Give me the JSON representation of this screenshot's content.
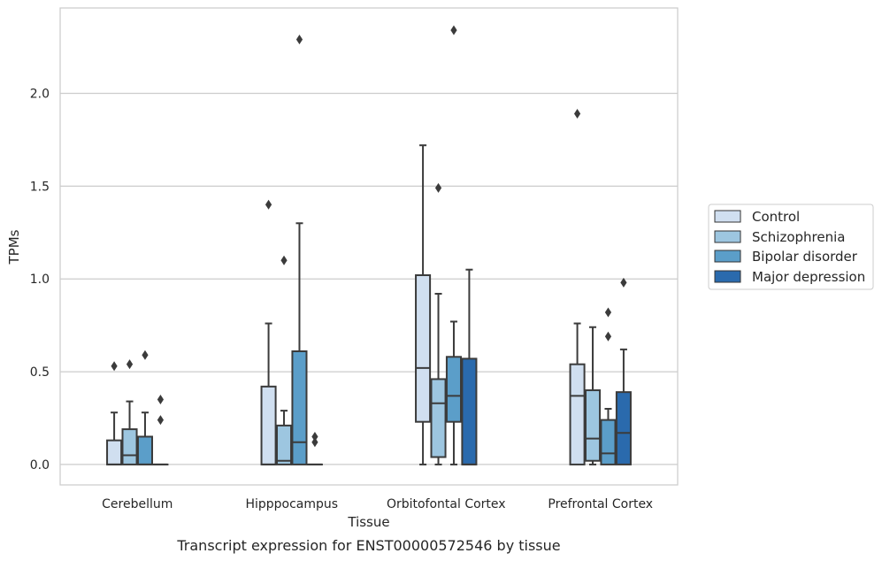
{
  "chart_data": {
    "type": "box",
    "xlabel": "Tissue",
    "ylabel": "TPMs",
    "caption": "Transcript expression for ENST00000572546 by tissue",
    "ylim": [
      -0.11,
      2.46
    ],
    "yticks": [
      "0.0",
      "0.5",
      "1.0",
      "1.5",
      "2.0"
    ],
    "ytick_values": [
      0.0,
      0.5,
      1.0,
      1.5,
      2.0
    ],
    "grid": "horizontal",
    "legend_position": "right",
    "categories": [
      "Cerebellum",
      "Hipppocampus",
      "Orbitofontal Cortex",
      "Prefrontal Cortex"
    ],
    "series": [
      {
        "name": "Control",
        "color": "#d0dff0"
      },
      {
        "name": "Schizophrenia",
        "color": "#9dc6e0"
      },
      {
        "name": "Bipolar disorder",
        "color": "#5b9ec9"
      },
      {
        "name": "Major depression",
        "color": "#2a6aad"
      }
    ],
    "boxes": [
      [
        {
          "min": 0.0,
          "q1": 0.0,
          "median": 0.0,
          "q3": 0.13,
          "max": 0.28,
          "outliers": [
            0.53
          ]
        },
        {
          "min": 0.0,
          "q1": 0.0,
          "median": 0.05,
          "q3": 0.19,
          "max": 0.34,
          "outliers": [
            0.54
          ]
        },
        {
          "min": 0.0,
          "q1": 0.0,
          "median": 0.0,
          "q3": 0.15,
          "max": 0.28,
          "outliers": [
            0.59
          ]
        },
        {
          "min": 0.0,
          "q1": 0.0,
          "median": 0.0,
          "q3": 0.0,
          "max": 0.0,
          "outliers": [
            0.24,
            0.35
          ]
        }
      ],
      [
        {
          "min": 0.0,
          "q1": 0.0,
          "median": 0.0,
          "q3": 0.42,
          "max": 0.76,
          "outliers": [
            1.4
          ]
        },
        {
          "min": 0.0,
          "q1": 0.0,
          "median": 0.02,
          "q3": 0.21,
          "max": 0.29,
          "outliers": [
            1.1
          ]
        },
        {
          "min": 0.0,
          "q1": 0.0,
          "median": 0.12,
          "q3": 0.61,
          "max": 1.3,
          "outliers": [
            2.29
          ]
        },
        {
          "min": 0.0,
          "q1": 0.0,
          "median": 0.0,
          "q3": 0.0,
          "max": 0.0,
          "outliers": [
            0.12,
            0.15
          ]
        }
      ],
      [
        {
          "min": 0.0,
          "q1": 0.23,
          "median": 0.52,
          "q3": 1.02,
          "max": 1.72,
          "outliers": []
        },
        {
          "min": 0.0,
          "q1": 0.04,
          "median": 0.33,
          "q3": 0.46,
          "max": 0.92,
          "outliers": [
            1.49
          ]
        },
        {
          "min": 0.0,
          "q1": 0.23,
          "median": 0.37,
          "q3": 0.58,
          "max": 0.77,
          "outliers": [
            2.34
          ]
        },
        {
          "min": 0.0,
          "q1": 0.0,
          "median": 0.0,
          "q3": 0.57,
          "max": 1.05,
          "outliers": []
        }
      ],
      [
        {
          "min": 0.0,
          "q1": 0.0,
          "median": 0.37,
          "q3": 0.54,
          "max": 0.76,
          "outliers": [
            1.89
          ]
        },
        {
          "min": 0.0,
          "q1": 0.02,
          "median": 0.14,
          "q3": 0.4,
          "max": 0.74,
          "outliers": []
        },
        {
          "min": 0.0,
          "q1": 0.0,
          "median": 0.06,
          "q3": 0.24,
          "max": 0.3,
          "outliers": [
            0.69,
            0.82
          ]
        },
        {
          "min": 0.0,
          "q1": 0.0,
          "median": 0.17,
          "q3": 0.39,
          "max": 0.62,
          "outliers": [
            0.98
          ]
        }
      ]
    ]
  }
}
